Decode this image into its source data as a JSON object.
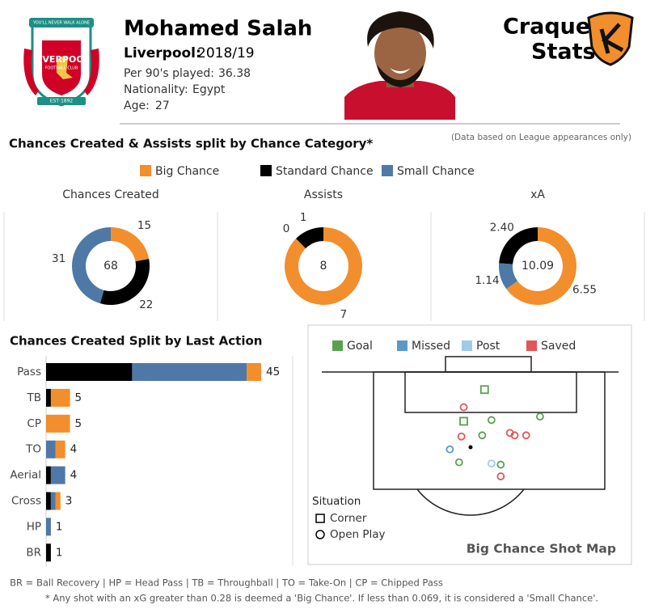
{
  "header": {
    "name": "Mohamed Salah",
    "club_label": "Liverpool:",
    "season": "2018/19",
    "stats": [
      {
        "label": "Per 90's played:",
        "value": 36.38
      },
      {
        "label": "Nationality:",
        "value": "Egypt"
      },
      {
        "label": "Age:",
        "value": 27
      }
    ],
    "crest": {
      "motto": "YOU'LL NEVER WALK ALONE",
      "club": "LIVERPOOL",
      "subtitle": "FOOTBALL CLUB",
      "est": "EST·1892"
    },
    "brand": [
      "Craque",
      "Stats"
    ]
  },
  "section_title": "Chances Created & Assists split by Chance  Category*",
  "note": "(Data based on League appearances only)",
  "legend": [
    {
      "name": "Big Chance",
      "color": "#f28e2b"
    },
    {
      "name": "Standard Chance",
      "color": "#000000"
    },
    {
      "name": "Small Chance",
      "color": "#4e79a7"
    }
  ],
  "chart_data": [
    {
      "type": "pie",
      "donut": true,
      "title": "Chances Created",
      "total": 68,
      "values": [
        15,
        22,
        31
      ],
      "colors": [
        "#f28e2b",
        "#000000",
        "#4e79a7"
      ]
    },
    {
      "type": "pie",
      "donut": true,
      "title": "Assists",
      "total": 8,
      "values": [
        7,
        1,
        0
      ],
      "colors": [
        "#f28e2b",
        "#000000",
        "#4e79a7"
      ]
    },
    {
      "type": "pie",
      "donut": true,
      "title": "xA",
      "total": 10.09,
      "values": [
        6.55,
        1.14,
        2.4
      ],
      "value_labels": [
        "6.55",
        "1.14",
        "2.40"
      ],
      "colors": [
        "#f28e2b",
        "#4e79a7",
        "#000000"
      ]
    },
    {
      "type": "bar",
      "orientation": "horizontal",
      "stacked": true,
      "title": "Chances Created Split by Last Action",
      "categories": [
        "Pass",
        "TB",
        "CP",
        "TO",
        "Aerial",
        "Cross",
        "HP",
        "BR"
      ],
      "series": [
        {
          "color": "#000000",
          "values": [
            18,
            1,
            0,
            0,
            1,
            1,
            0,
            1
          ]
        },
        {
          "color": "#4e79a7",
          "values": [
            24,
            0,
            0,
            2,
            3,
            1,
            1,
            0
          ]
        },
        {
          "color": "#f28e2b",
          "values": [
            3,
            4,
            5,
            2,
            0,
            1,
            0,
            0
          ]
        }
      ],
      "totals": [
        45,
        5,
        5,
        4,
        4,
        3,
        1,
        1
      ]
    },
    {
      "type": "scatter",
      "title": "Big Chance Shot Map",
      "series": [
        {
          "name": "Goal",
          "color": "#59a14f",
          "x": [
            48,
            39,
            51,
            72,
            47,
            37,
            55
          ],
          "y": [
            15,
            42,
            41,
            38,
            54,
            77,
            79
          ],
          "marker": [
            "square",
            "square",
            "circle",
            "circle",
            "circle",
            "circle",
            "circle"
          ]
        },
        {
          "name": "Missed",
          "color": "#5b97c9",
          "x": [
            33
          ],
          "y": [
            66
          ],
          "marker": [
            "circle"
          ]
        },
        {
          "name": "Post",
          "color": "#a0cbe8",
          "x": [
            51
          ],
          "y": [
            78
          ],
          "marker": [
            "circle"
          ]
        },
        {
          "name": "Saved",
          "color": "#e15759",
          "x": [
            39,
            38,
            59,
            61,
            66,
            55
          ],
          "y": [
            30,
            55,
            52,
            54,
            54,
            89
          ],
          "marker": [
            "circle",
            "circle",
            "circle",
            "circle",
            "circle",
            "circle"
          ]
        }
      ],
      "situation_title": "Situation",
      "situations": [
        {
          "label": "Corner",
          "marker": "square"
        },
        {
          "label": "Open Play",
          "marker": "circle"
        }
      ]
    }
  ],
  "footnotes": [
    "BR = Ball Recovery | HP = Head Pass | TB = Throughball | TO = Take-On | CP = Chipped Pass",
    "* Any shot with an xG greater than 0.28 is deemed a 'Big Chance'. If less than 0.069, it is considered a 'Small Chance'."
  ]
}
